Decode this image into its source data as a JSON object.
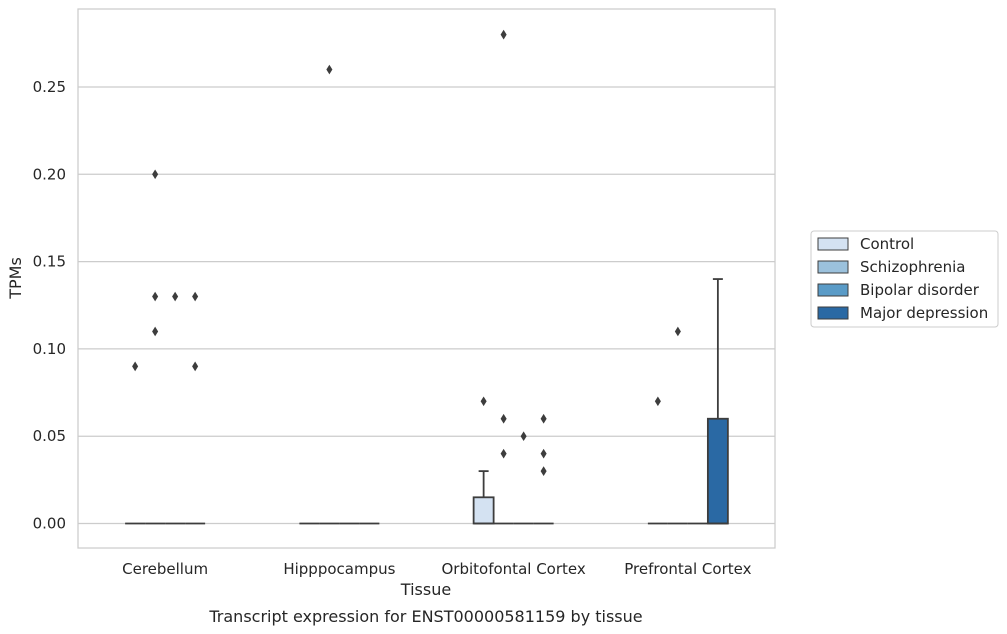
{
  "chart_data": {
    "type": "box",
    "title": "Transcript expression for ENST00000581159 by tissue",
    "xlabel": "Tissue",
    "ylabel": "TPMs",
    "ylim": [
      -0.014,
      0.294
    ],
    "yticks": [
      "0.00",
      "0.05",
      "0.10",
      "0.15",
      "0.20",
      "0.25"
    ],
    "categories": [
      "Cerebellum",
      "Hipppocampus",
      "Orbitofontal Cortex",
      "Prefrontal Cortex"
    ],
    "grid": true,
    "legend_position": "right",
    "series": [
      {
        "name": "Control",
        "color": "#d4e2f2",
        "boxes": [
          {
            "q1": 0,
            "median": 0,
            "q3": 0,
            "whisker_low": 0,
            "whisker_high": 0,
            "outliers": [
              0.09
            ]
          },
          {
            "q1": 0,
            "median": 0,
            "q3": 0,
            "whisker_low": 0,
            "whisker_high": 0,
            "outliers": []
          },
          {
            "q1": 0,
            "median": 0,
            "q3": 0.015,
            "whisker_low": 0,
            "whisker_high": 0.03,
            "outliers": [
              0.07
            ]
          },
          {
            "q1": 0,
            "median": 0,
            "q3": 0,
            "whisker_low": 0,
            "whisker_high": 0,
            "outliers": [
              0.07
            ]
          }
        ]
      },
      {
        "name": "Schizophrenia",
        "color": "#9bc1dc",
        "boxes": [
          {
            "q1": 0,
            "median": 0,
            "q3": 0,
            "whisker_low": 0,
            "whisker_high": 0,
            "outliers": [
              0.2,
              0.11,
              0.13
            ]
          },
          {
            "q1": 0,
            "median": 0,
            "q3": 0,
            "whisker_low": 0,
            "whisker_high": 0,
            "outliers": [
              0.26
            ]
          },
          {
            "q1": 0,
            "median": 0,
            "q3": 0,
            "whisker_low": 0,
            "whisker_high": 0,
            "outliers": [
              0.28,
              0.06,
              0.04
            ]
          },
          {
            "q1": 0,
            "median": 0,
            "q3": 0,
            "whisker_low": 0,
            "whisker_high": 0,
            "outliers": [
              0.11
            ]
          }
        ]
      },
      {
        "name": "Bipolar disorder",
        "color": "#5a9bc7",
        "boxes": [
          {
            "q1": 0,
            "median": 0,
            "q3": 0,
            "whisker_low": 0,
            "whisker_high": 0,
            "outliers": [
              0.13
            ]
          },
          {
            "q1": 0,
            "median": 0,
            "q3": 0,
            "whisker_low": 0,
            "whisker_high": 0,
            "outliers": []
          },
          {
            "q1": 0,
            "median": 0,
            "q3": 0,
            "whisker_low": 0,
            "whisker_high": 0,
            "outliers": [
              0.05
            ]
          },
          {
            "q1": 0,
            "median": 0,
            "q3": 0,
            "whisker_low": 0,
            "whisker_high": 0,
            "outliers": []
          }
        ]
      },
      {
        "name": "Major depression",
        "color": "#2a69a4",
        "boxes": [
          {
            "q1": 0,
            "median": 0,
            "q3": 0,
            "whisker_low": 0,
            "whisker_high": 0,
            "outliers": [
              0.13,
              0.09
            ]
          },
          {
            "q1": 0,
            "median": 0,
            "q3": 0,
            "whisker_low": 0,
            "whisker_high": 0,
            "outliers": []
          },
          {
            "q1": 0,
            "median": 0,
            "q3": 0,
            "whisker_low": 0,
            "whisker_high": 0,
            "outliers": [
              0.06,
              0.04,
              0.03
            ]
          },
          {
            "q1": 0,
            "median": 0,
            "q3": 0.06,
            "whisker_low": 0,
            "whisker_high": 0.14,
            "outliers": []
          }
        ]
      }
    ]
  }
}
